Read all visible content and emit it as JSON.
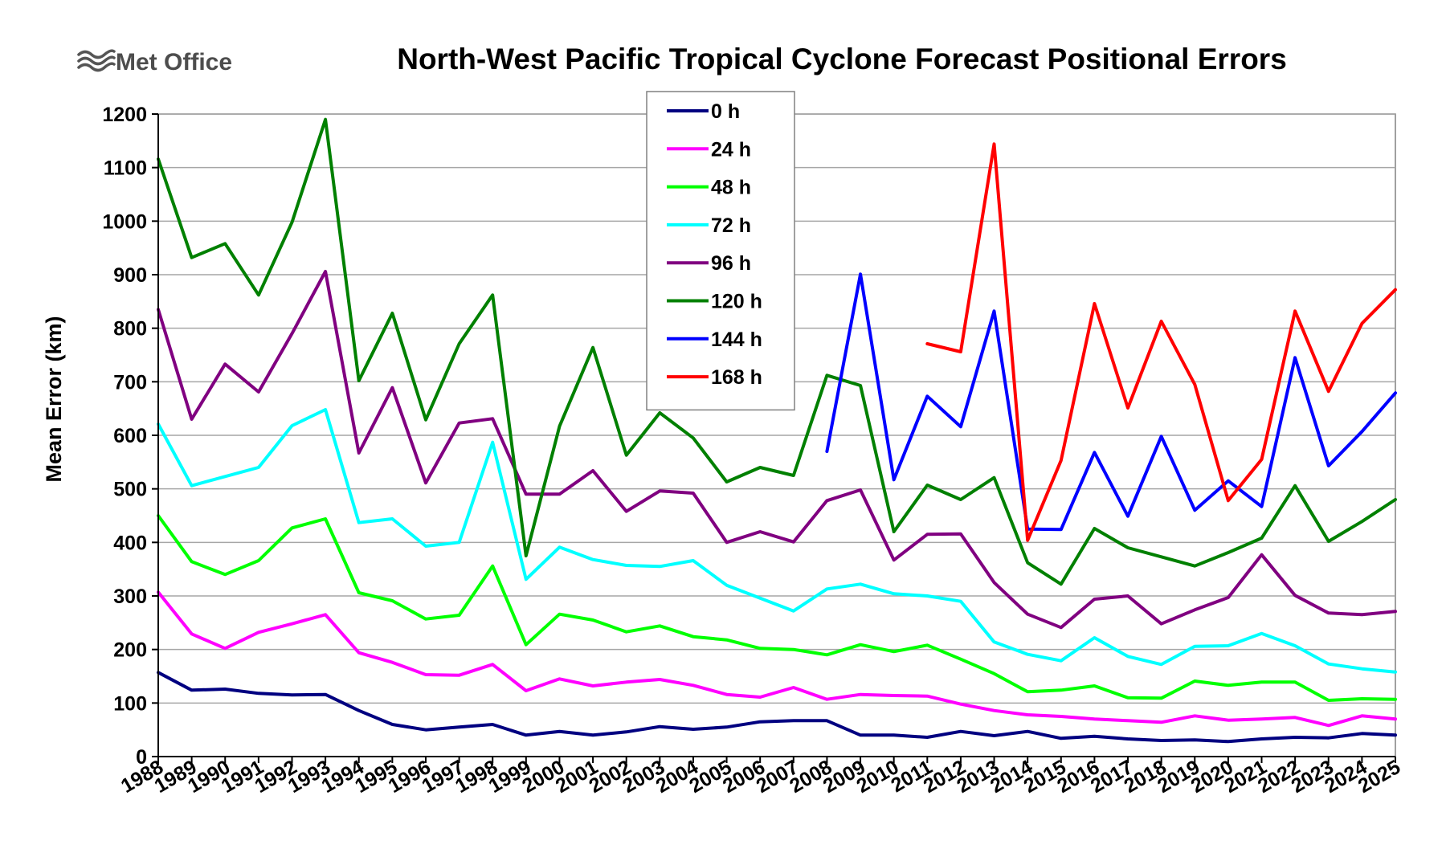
{
  "logo": {
    "text": "Met Office"
  },
  "chart_data": {
    "type": "line",
    "title": "North-West Pacific Tropical Cyclone Forecast Positional Errors",
    "xlabel": "",
    "ylabel": "Mean Error (km)",
    "ylim": [
      0,
      1200
    ],
    "yticks": [
      0,
      100,
      200,
      300,
      400,
      500,
      600,
      700,
      800,
      900,
      1000,
      1100,
      1200
    ],
    "grid": true,
    "legend_position": "top-center",
    "categories": [
      "1988",
      "1989",
      "1990",
      "1991",
      "1992",
      "1993",
      "1994",
      "1995",
      "1996",
      "1997",
      "1998",
      "1999",
      "2000",
      "2001",
      "2002",
      "2003",
      "2004",
      "2005",
      "2006",
      "2007",
      "2008",
      "2009",
      "2010",
      "2011",
      "2012",
      "2013",
      "2014",
      "2015",
      "2016",
      "2017",
      "2018",
      "2019",
      "2020",
      "2021",
      "2022",
      "2023",
      "2024",
      "2025"
    ],
    "series": [
      {
        "name": "0 h",
        "color": "#000080",
        "values": [
          157,
          124,
          126,
          118,
          115,
          116,
          86,
          60,
          50,
          55,
          60,
          40,
          47,
          40,
          46,
          56,
          51,
          55,
          65,
          67,
          67,
          40,
          40,
          36,
          47,
          39,
          47,
          34,
          38,
          33,
          30,
          31,
          28,
          33,
          36,
          35,
          43,
          40
        ]
      },
      {
        "name": "24 h",
        "color": "#ff00ff",
        "values": [
          307,
          229,
          202,
          232,
          248,
          265,
          194,
          176,
          153,
          152,
          172,
          123,
          145,
          132,
          139,
          144,
          133,
          116,
          111,
          129,
          107,
          116,
          114,
          113,
          98,
          86,
          78,
          75,
          70,
          67,
          64,
          76,
          68,
          70,
          73,
          58,
          76,
          70
        ]
      },
      {
        "name": "48 h",
        "color": "#00ff00",
        "values": [
          450,
          364,
          340,
          366,
          427,
          444,
          306,
          291,
          257,
          264,
          356,
          209,
          266,
          255,
          233,
          244,
          224,
          218,
          202,
          200,
          190,
          209,
          196,
          208,
          182,
          155,
          121,
          124,
          132,
          110,
          109,
          141,
          133,
          139,
          139,
          105,
          108,
          107
        ]
      },
      {
        "name": "72 h",
        "color": "#00ffff",
        "values": [
          621,
          506,
          523,
          540,
          618,
          648,
          437,
          444,
          393,
          400,
          587,
          331,
          391,
          368,
          357,
          355,
          366,
          320,
          296,
          272,
          313,
          322,
          304,
          300,
          290,
          214,
          191,
          179,
          222,
          187,
          172,
          206,
          207,
          230,
          207,
          173,
          164,
          158
        ]
      },
      {
        "name": "96 h",
        "color": "#800080",
        "values": [
          835,
          630,
          733,
          681,
          790,
          906,
          567,
          689,
          511,
          623,
          631,
          490,
          490,
          534,
          458,
          496,
          492,
          400,
          420,
          401,
          478,
          498,
          367,
          415,
          416,
          325,
          266,
          241,
          294,
          300,
          248,
          274,
          297,
          377,
          301,
          268,
          265,
          271
        ]
      },
      {
        "name": "120 h",
        "color": "#008000",
        "values": [
          1116,
          932,
          958,
          862,
          998,
          1190,
          702,
          828,
          629,
          771,
          862,
          375,
          617,
          764,
          563,
          642,
          595,
          513,
          540,
          525,
          712,
          693,
          420,
          507,
          480,
          521,
          362,
          322,
          426,
          390,
          373,
          356,
          381,
          408,
          506,
          402,
          439,
          480
        ]
      },
      {
        "name": "144 h",
        "color": "#0000ff",
        "values": [
          null,
          null,
          null,
          null,
          null,
          null,
          null,
          null,
          null,
          null,
          null,
          null,
          null,
          null,
          null,
          null,
          null,
          null,
          null,
          null,
          570,
          901,
          517,
          673,
          616,
          832,
          425,
          424,
          568,
          449,
          598,
          460,
          515,
          467,
          745,
          543,
          607,
          679
        ]
      },
      {
        "name": "168 h",
        "color": "#ff0000",
        "values": [
          null,
          null,
          null,
          null,
          null,
          null,
          null,
          null,
          null,
          null,
          null,
          null,
          null,
          null,
          null,
          null,
          null,
          null,
          null,
          null,
          null,
          null,
          null,
          771,
          756,
          1144,
          404,
          553,
          846,
          651,
          813,
          695,
          478,
          555,
          832,
          682,
          809,
          872
        ]
      }
    ]
  }
}
